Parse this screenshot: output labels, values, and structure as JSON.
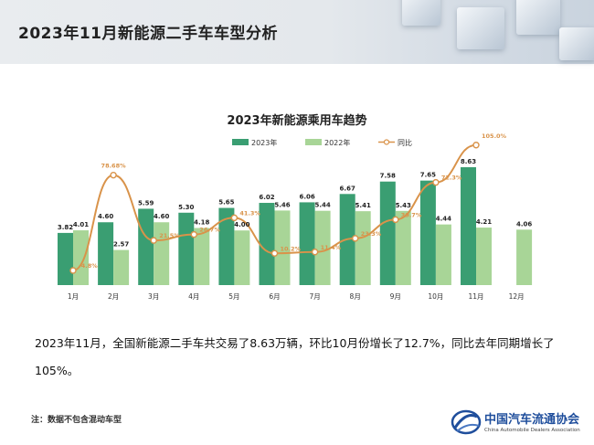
{
  "header": {
    "title": "2023年11月新能源二手车车型分析"
  },
  "chart_data": {
    "type": "bar+line",
    "title": "2023年新能源乘用车趋势",
    "categories": [
      "1月",
      "2月",
      "3月",
      "4月",
      "5月",
      "6月",
      "7月",
      "8月",
      "9月",
      "10月",
      "11月",
      "12月"
    ],
    "series": [
      {
        "name": "2023年",
        "type": "bar",
        "color": "#3a9e72",
        "values": [
          3.82,
          4.6,
          5.59,
          5.3,
          5.65,
          6.02,
          6.06,
          6.67,
          7.58,
          7.65,
          8.63,
          null
        ],
        "labels": [
          "3.82",
          "4.60",
          "5.59",
          "5.30",
          "5.65",
          "6.02",
          "6.06",
          "6.67",
          "7.58",
          "7.65",
          "8.63",
          ""
        ]
      },
      {
        "name": "2022年",
        "type": "bar",
        "color": "#a8d597",
        "values": [
          4.01,
          2.57,
          4.6,
          4.18,
          4.0,
          5.46,
          5.44,
          5.41,
          5.43,
          4.44,
          4.21,
          4.06
        ],
        "labels": [
          "4.01",
          "2.57",
          "4.60",
          "4.18",
          "4.00",
          "5.46",
          "5.44",
          "5.41",
          "5.43",
          "4.44",
          "4.21",
          "4.06"
        ]
      },
      {
        "name": "同比",
        "type": "line",
        "color": "#d9934a",
        "values": [
          -4.8,
          78.68,
          21.5,
          26.7,
          41.3,
          10.2,
          11.4,
          23.3,
          39.7,
          72.3,
          105.0,
          null
        ],
        "labels": [
          "-4.8%",
          "78.68%",
          "21.5%",
          "26.7%",
          "41.3%",
          "10.2%",
          "11.4%",
          "23.3%",
          "39.7%",
          "72.3%",
          "105.0%",
          ""
        ]
      }
    ],
    "ylim": [
      0,
      9.5
    ],
    "y2lim": [
      -20,
      120
    ],
    "legend": "top-center",
    "grid": false
  },
  "summary": "2023年11月，全国新能源二手车共交易了8.63万辆，环比10月份增长了12.7%，同比去年同期增长了105%。",
  "note": "注：数据不包含混动车型",
  "logo": {
    "name_cn": "中国汽车流通协会",
    "name_en": "China Automobile Dealers Association"
  }
}
